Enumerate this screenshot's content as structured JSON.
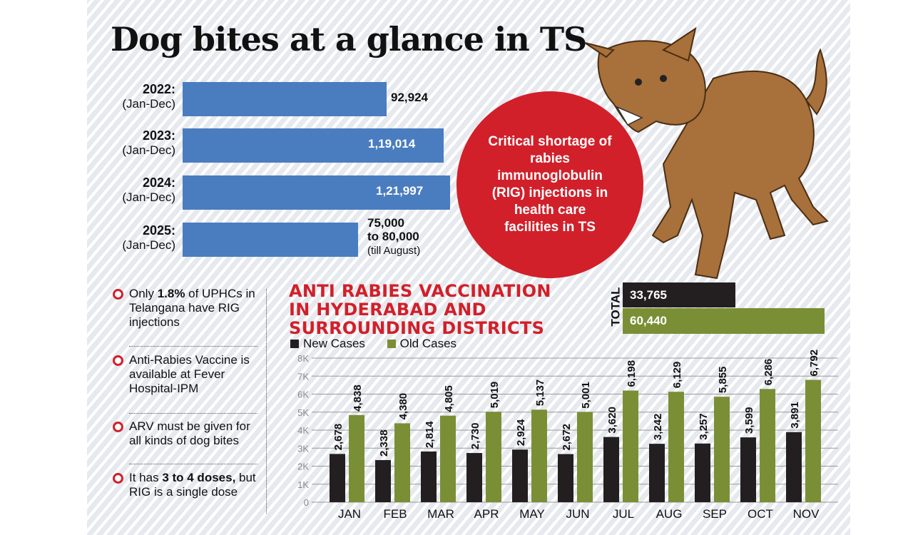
{
  "title": "Dog bites at a glance in TS",
  "yearly": [
    {
      "year": "2022:",
      "period": "(Jan-Dec)",
      "value": 92924,
      "label": "92,924"
    },
    {
      "year": "2023:",
      "period": "(Jan-Dec)",
      "value": 119014,
      "label": "1,19,014"
    },
    {
      "year": "2024:",
      "period": "(Jan-Dec)",
      "value": 121997,
      "label": "1,21,997"
    },
    {
      "year": "2025:",
      "period": "(Jan-Dec)",
      "value_range": [
        75000,
        80000
      ],
      "label_line1": "75,000",
      "label_line2": "to 80,000",
      "note": "(till August)"
    }
  ],
  "callout": "Critical shortage of rabies immunoglobulin (RIG) injections in health care facilities in TS",
  "bullets": [
    {
      "pre": "Only ",
      "bold": "1.8%",
      "post": " of UPHCs in Telangana have RIG injections"
    },
    {
      "pre": "Anti-Rabies Vaccine is available at Fever Hospital-IPM",
      "bold": "",
      "post": ""
    },
    {
      "pre": "ARV must be given for all kinds of dog bites",
      "bold": "",
      "post": ""
    },
    {
      "pre": "It has ",
      "bold": "3 to 4 doses,",
      "post": " but RIG is a single dose"
    }
  ],
  "colors": {
    "blue": "#4a7cc0",
    "red": "#d1202a",
    "new": "#231f20",
    "old": "#7a8f35"
  },
  "chart_data": {
    "type": "bar",
    "title": "ANTI RABIES VACCINATION IN HYDERABAD AND SURROUNDING DISTRICTS",
    "categories": [
      "JAN",
      "FEB",
      "MAR",
      "APR",
      "MAY",
      "JUN",
      "JUL",
      "AUG",
      "SEP",
      "OCT",
      "NOV"
    ],
    "series": [
      {
        "name": "New Cases",
        "values": [
          2678,
          2338,
          2814,
          2730,
          2924,
          2672,
          3620,
          3242,
          3257,
          3599,
          3891
        ],
        "labels": [
          "2,678",
          "2,338",
          "2,814",
          "2,730",
          "2,924",
          "2,672",
          "3,620",
          "3,242",
          "3,257",
          "3,599",
          "3,891"
        ]
      },
      {
        "name": "Old Cases",
        "values": [
          4838,
          4380,
          4805,
          5019,
          5137,
          5001,
          6198,
          6129,
          5855,
          6286,
          6792
        ],
        "labels": [
          "4,838",
          "4,380",
          "4,805",
          "5,019",
          "5,137",
          "5,001",
          "6,198",
          "6,129",
          "5,855",
          "6,286",
          "6,792"
        ]
      }
    ],
    "yticks": [
      "0",
      "1K",
      "2K",
      "3K",
      "4K",
      "5K",
      "6K",
      "7K",
      "8K"
    ],
    "ylim": [
      0,
      8000
    ],
    "grid": true,
    "legend": "top-left",
    "total_label": "TOTAL",
    "totals": [
      {
        "value": 33765,
        "label": "33,765"
      },
      {
        "value": 60440,
        "label": "60,440"
      }
    ]
  }
}
